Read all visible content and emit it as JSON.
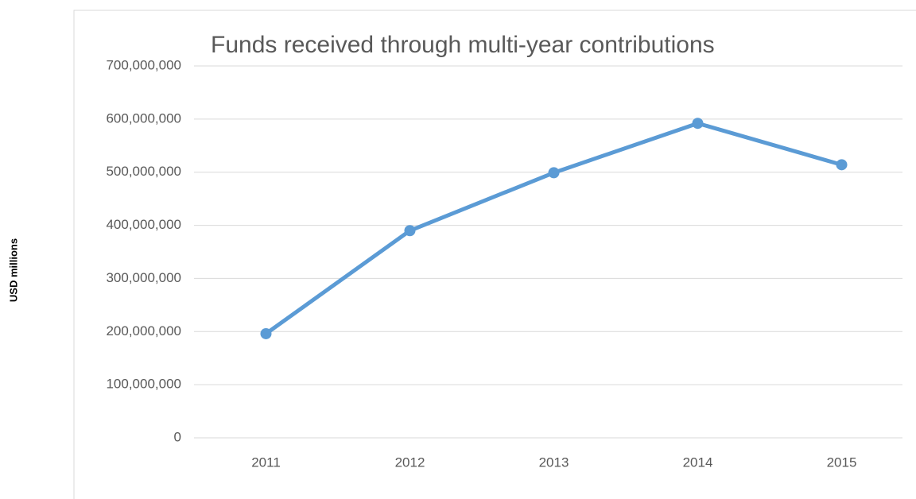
{
  "chart_data": {
    "type": "line",
    "title": "Funds received through multi-year contributions",
    "y_label": "USD millions",
    "categories": [
      "2011",
      "2012",
      "2013",
      "2014",
      "2015"
    ],
    "series": [
      {
        "name": "Funds received",
        "color": "#5b9bd5",
        "values": [
          196000000,
          390000000,
          499000000,
          592000000,
          514000000
        ]
      }
    ],
    "ylim": [
      0,
      700000000
    ],
    "yticks": [
      0,
      {
        "value": 100000000,
        "label": "100,000,000"
      },
      {
        "value": 200000000,
        "label": "200,000,000"
      },
      {
        "value": 300000000,
        "label": "300,000,000"
      },
      {
        "value": 400000000,
        "label": "400,000,000"
      },
      {
        "value": 500000000,
        "label": "500,000,000"
      },
      {
        "value": 600000000,
        "label": "600,000,000"
      },
      {
        "value": 700000000,
        "label": "700,000,000"
      }
    ],
    "grid": true
  }
}
